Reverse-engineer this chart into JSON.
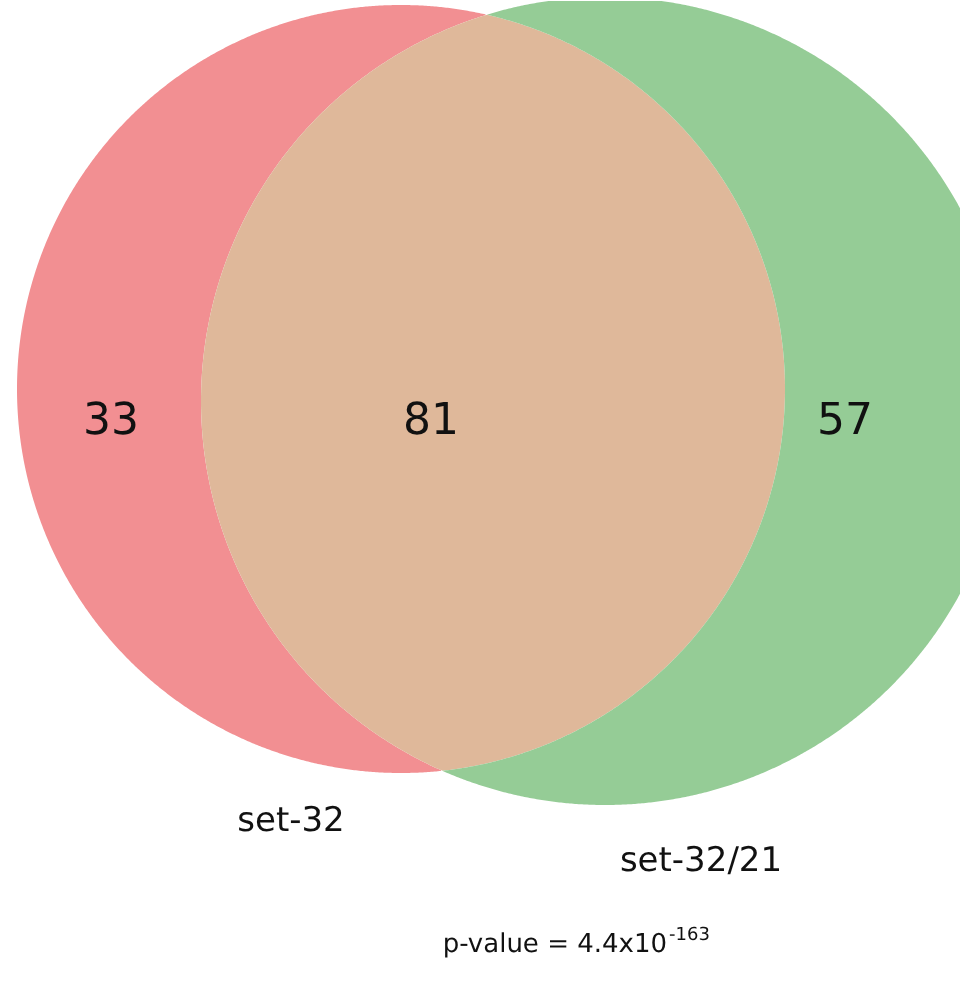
{
  "chart_data": {
    "type": "other",
    "categories": [
      null,
      null,
      null
    ],
    "values": [
      33,
      81,
      57
    ],
    "colors": [
      "#f28f92",
      "#dfb89a",
      "#95cc96"
    ],
    "data_labels": true,
    "annotations": [
      "set-32",
      "set-32/21",
      "p-value = 4.4x10$^{-163}$"
    ]
  }
}
